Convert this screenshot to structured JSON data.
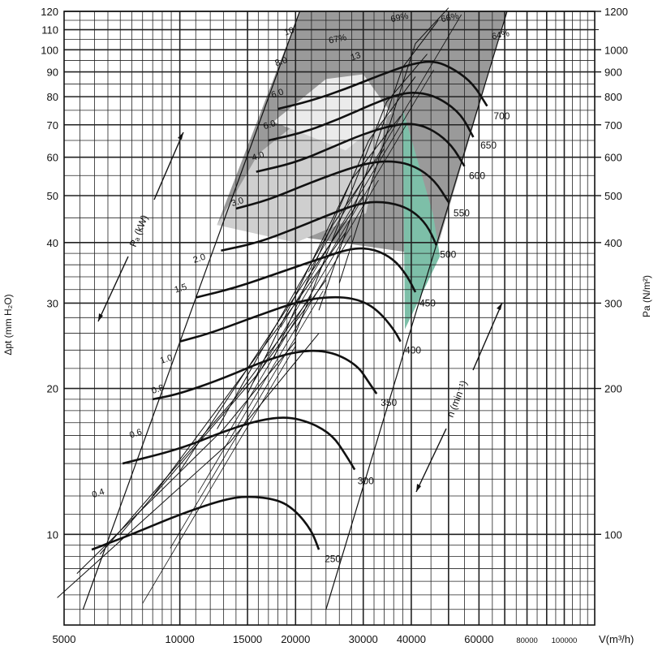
{
  "chart_data": {
    "type": "line",
    "title": "",
    "xlabel": "V(m³/h)",
    "ylabel_left": "Δpt (mm H₂O)",
    "ylabel_right": "Pa (N/m²)",
    "x_scale": "log",
    "y_scale": "log",
    "xlim": [
      5000,
      120000
    ],
    "ylim": [
      6.5,
      120
    ],
    "grid": true,
    "x_ticks": [
      {
        "v": 5000,
        "label": "5000"
      },
      {
        "v": 10000,
        "label": "10000"
      },
      {
        "v": 15000,
        "label": "15000"
      },
      {
        "v": 20000,
        "label": "20000"
      },
      {
        "v": 30000,
        "label": "30000"
      },
      {
        "v": 40000,
        "label": "40000"
      },
      {
        "v": 60000,
        "label": "60000"
      },
      {
        "v": 80000,
        "label": "80000"
      },
      {
        "v": 100000,
        "label": "100000"
      }
    ],
    "y_ticks_left": [
      {
        "v": 10,
        "label": "10"
      },
      {
        "v": 20,
        "label": "20"
      },
      {
        "v": 30,
        "label": "30"
      },
      {
        "v": 40,
        "label": "40"
      },
      {
        "v": 50,
        "label": "50"
      },
      {
        "v": 60,
        "label": "60"
      },
      {
        "v": 70,
        "label": "70"
      },
      {
        "v": 80,
        "label": "80"
      },
      {
        "v": 90,
        "label": "90"
      },
      {
        "v": 100,
        "label": "100"
      },
      {
        "v": 110,
        "label": "110"
      },
      {
        "v": 120,
        "label": "120"
      }
    ],
    "y_ticks_right": [
      {
        "v": 10,
        "label": "100"
      },
      {
        "v": 20,
        "label": "200"
      },
      {
        "v": 30,
        "label": "300"
      },
      {
        "v": 40,
        "label": "400"
      },
      {
        "v": 50,
        "label": "500"
      },
      {
        "v": 60,
        "label": "600"
      },
      {
        "v": 70,
        "label": "700"
      },
      {
        "v": 80,
        "label": "800"
      },
      {
        "v": 90,
        "label": "900"
      },
      {
        "v": 100,
        "label": "1000"
      },
      {
        "v": 120,
        "label": "1200"
      }
    ],
    "speed_curves": [
      {
        "rpm": "250",
        "points": [
          [
            5900,
            9.3
          ],
          [
            7500,
            10.0
          ],
          [
            10000,
            11.0
          ],
          [
            13000,
            11.8
          ],
          [
            15000,
            12.0
          ],
          [
            18000,
            11.8
          ],
          [
            20000,
            11.2
          ],
          [
            22000,
            10.2
          ],
          [
            23000,
            9.3
          ]
        ]
      },
      {
        "rpm": "300",
        "points": [
          [
            7100,
            14.0
          ],
          [
            10000,
            15.0
          ],
          [
            13000,
            16.3
          ],
          [
            16000,
            17.2
          ],
          [
            19000,
            17.5
          ],
          [
            22000,
            17.0
          ],
          [
            25000,
            16.0
          ],
          [
            27000,
            14.6
          ],
          [
            28500,
            13.6
          ]
        ]
      },
      {
        "rpm": "350",
        "points": [
          [
            8500,
            19.0
          ],
          [
            10000,
            19.5
          ],
          [
            13000,
            21.0
          ],
          [
            17000,
            23.0
          ],
          [
            21000,
            24.0
          ],
          [
            25000,
            23.8
          ],
          [
            29000,
            22.3
          ],
          [
            31000,
            20.6
          ],
          [
            32500,
            19.5
          ]
        ]
      },
      {
        "rpm": "400",
        "points": [
          [
            10000,
            25.0
          ],
          [
            12000,
            26.0
          ],
          [
            16000,
            28.3
          ],
          [
            21000,
            30.5
          ],
          [
            26000,
            31.0
          ],
          [
            30000,
            30.3
          ],
          [
            33000,
            28.8
          ],
          [
            36000,
            26.5
          ],
          [
            37500,
            25.0
          ]
        ]
      },
      {
        "rpm": "450",
        "points": [
          [
            11000,
            30.8
          ],
          [
            14000,
            32.3
          ],
          [
            18000,
            34.6
          ],
          [
            23000,
            37.0
          ],
          [
            28000,
            39.0
          ],
          [
            32000,
            38.8
          ],
          [
            36000,
            37.0
          ],
          [
            39000,
            34.2
          ],
          [
            41000,
            31.6
          ]
        ]
      },
      {
        "rpm": "500",
        "points": [
          [
            12800,
            38.5
          ],
          [
            16000,
            40.0
          ],
          [
            20000,
            42.8
          ],
          [
            25000,
            46.0
          ],
          [
            30000,
            48.5
          ],
          [
            35000,
            48.5
          ],
          [
            40000,
            46.8
          ],
          [
            44000,
            43.5
          ],
          [
            46500,
            39.5
          ]
        ]
      },
      {
        "rpm": "550",
        "points": [
          [
            14000,
            47.0
          ],
          [
            17000,
            49.0
          ],
          [
            21000,
            52.5
          ],
          [
            26000,
            56.0
          ],
          [
            31000,
            58.5
          ],
          [
            36000,
            59.0
          ],
          [
            41000,
            57.5
          ],
          [
            46000,
            53.8
          ],
          [
            50000,
            48.5
          ]
        ]
      },
      {
        "rpm": "600",
        "points": [
          [
            15800,
            56.0
          ],
          [
            20000,
            58.5
          ],
          [
            25000,
            63.0
          ],
          [
            30000,
            67.0
          ],
          [
            36000,
            70.0
          ],
          [
            41000,
            70.5
          ],
          [
            46000,
            68.0
          ],
          [
            51000,
            63.5
          ],
          [
            55000,
            57.5
          ]
        ]
      },
      {
        "rpm": "650",
        "points": [
          [
            17000,
            65.0
          ],
          [
            21000,
            67.5
          ],
          [
            26000,
            72.0
          ],
          [
            32000,
            77.5
          ],
          [
            38000,
            81.5
          ],
          [
            43000,
            81.5
          ],
          [
            48000,
            79.0
          ],
          [
            54000,
            73.5
          ],
          [
            58000,
            66.0
          ]
        ]
      },
      {
        "rpm": "700",
        "points": [
          [
            18000,
            75.5
          ],
          [
            22000,
            78.5
          ],
          [
            27000,
            83.0
          ],
          [
            33000,
            88.5
          ],
          [
            40000,
            93.5
          ],
          [
            46000,
            95.0
          ],
          [
            52000,
            91.0
          ],
          [
            58000,
            85.0
          ],
          [
            63000,
            76.5
          ]
        ]
      }
    ],
    "speed_labels": [
      {
        "text": "250",
        "x": 23800,
        "y": 8.9
      },
      {
        "text": "300",
        "x": 29000,
        "y": 12.9
      },
      {
        "text": "350",
        "x": 33300,
        "y": 18.7
      },
      {
        "text": "400",
        "x": 38500,
        "y": 24.0
      },
      {
        "text": "450",
        "x": 42000,
        "y": 30.0
      },
      {
        "text": "500",
        "x": 47500,
        "y": 37.8
      },
      {
        "text": "550",
        "x": 51500,
        "y": 46.0
      },
      {
        "text": "600",
        "x": 56500,
        "y": 55.0
      },
      {
        "text": "650",
        "x": 60500,
        "y": 63.5
      },
      {
        "text": "700",
        "x": 65500,
        "y": 73.0
      }
    ],
    "power_lines": [
      {
        "label": "0.4",
        "points": [
          [
            4800,
            7.4
          ],
          [
            13500,
            15.5
          ],
          [
            23000,
            26.0
          ]
        ]
      },
      {
        "label": "0.6",
        "points": [
          [
            5400,
            8.3
          ],
          [
            13000,
            16.5
          ],
          [
            20000,
            25.0
          ]
        ]
      },
      {
        "label": "0.8",
        "points": [
          [
            6200,
            9.1
          ],
          [
            14000,
            19.2
          ],
          [
            22000,
            31.0
          ]
        ]
      },
      {
        "label": "1.0",
        "points": [
          [
            7000,
            10.0
          ],
          [
            16000,
            21.5
          ],
          [
            24000,
            33.5
          ]
        ]
      },
      {
        "label": "1.5",
        "points": [
          [
            8500,
            12.0
          ],
          [
            18500,
            27.5
          ],
          [
            27000,
            42.0
          ]
        ]
      },
      {
        "label": "2.0",
        "points": [
          [
            10000,
            13.5
          ],
          [
            21000,
            33.0
          ],
          [
            30000,
            50.0
          ]
        ]
      },
      {
        "label": "3.0",
        "points": [
          [
            12500,
            16.5
          ],
          [
            25000,
            43.5
          ],
          [
            34000,
            62.5
          ]
        ]
      },
      {
        "label": "4.0",
        "points": [
          [
            15000,
            19.5
          ],
          [
            28000,
            54.0
          ],
          [
            37500,
            73.0
          ]
        ]
      },
      {
        "label": "6.0",
        "points": [
          [
            17500,
            23.0
          ],
          [
            31000,
            65.0
          ],
          [
            41000,
            88.0
          ]
        ]
      },
      {
        "label": "8.0",
        "points": [
          [
            20000,
            26.0
          ],
          [
            34500,
            78.0
          ],
          [
            44000,
            98.0
          ]
        ]
      },
      {
        "label": "10",
        "points": [
          [
            23000,
            29.0
          ],
          [
            38000,
            92.0
          ],
          [
            47000,
            115.0
          ]
        ]
      },
      {
        "label": "13",
        "points": [
          [
            26000,
            33.0
          ],
          [
            41000,
            103.0
          ],
          [
            50000,
            122.0
          ]
        ]
      }
    ],
    "power_label_positions": [
      {
        "text": "0.4",
        "x": 5950,
        "y": 11.9
      },
      {
        "text": "0.6",
        "x": 7450,
        "y": 15.8
      },
      {
        "text": "0.8",
        "x": 8500,
        "y": 19.5
      },
      {
        "text": "1.0",
        "x": 8950,
        "y": 22.5
      },
      {
        "text": "1.5",
        "x": 9750,
        "y": 31.5
      },
      {
        "text": "2.0",
        "x": 10900,
        "y": 36.3
      },
      {
        "text": "3.0",
        "x": 13700,
        "y": 47.5
      },
      {
        "text": "4.0",
        "x": 15500,
        "y": 59.0
      },
      {
        "text": "6.0",
        "x": 16600,
        "y": 68.5
      },
      {
        "text": "6.0",
        "x": 17400,
        "y": 79.5
      },
      {
        "text": "8.0",
        "x": 17800,
        "y": 92.5
      },
      {
        "text": "10",
        "x": 18800,
        "y": 107.0
      },
      {
        "text": "13",
        "x": 28000,
        "y": 95.0
      }
    ],
    "efficiency_labels": [
      {
        "text": "67%",
        "x": 24500,
        "y": 103.0
      },
      {
        "text": "69%",
        "x": 35500,
        "y": 114.0
      },
      {
        "text": "66%",
        "x": 48000,
        "y": 114.0
      },
      {
        "text": "64%",
        "x": 65000,
        "y": 105.0
      }
    ],
    "power_axis_label": "Pₐ (kW)",
    "speed_axis_label": "n (min⁻¹)",
    "zones": [
      {
        "name": "outer",
        "color": "#9a9a9a",
        "points": [
          [
            12500,
            43.5
          ],
          [
            20500,
            120
          ],
          [
            71000,
            120
          ],
          [
            46000,
            37.5
          ]
        ]
      },
      {
        "name": "mid",
        "color": "#cfcfcf",
        "points": [
          [
            12500,
            43.5
          ],
          [
            16000,
            61
          ],
          [
            28500,
            88
          ],
          [
            34500,
            72
          ],
          [
            30500,
            46
          ],
          [
            20000,
            40
          ]
        ]
      },
      {
        "name": "inner",
        "color": "#ebebeb",
        "points": [
          [
            17500,
            71
          ],
          [
            24000,
            87
          ],
          [
            30000,
            89
          ],
          [
            35500,
            74
          ],
          [
            27000,
            62
          ]
        ]
      },
      {
        "name": "optimal",
        "color": "#7dbfa8",
        "points": [
          [
            38000,
            75.5
          ],
          [
            45500,
            46
          ],
          [
            47500,
            37.5
          ],
          [
            38500,
            26.5
          ]
        ]
      }
    ]
  }
}
